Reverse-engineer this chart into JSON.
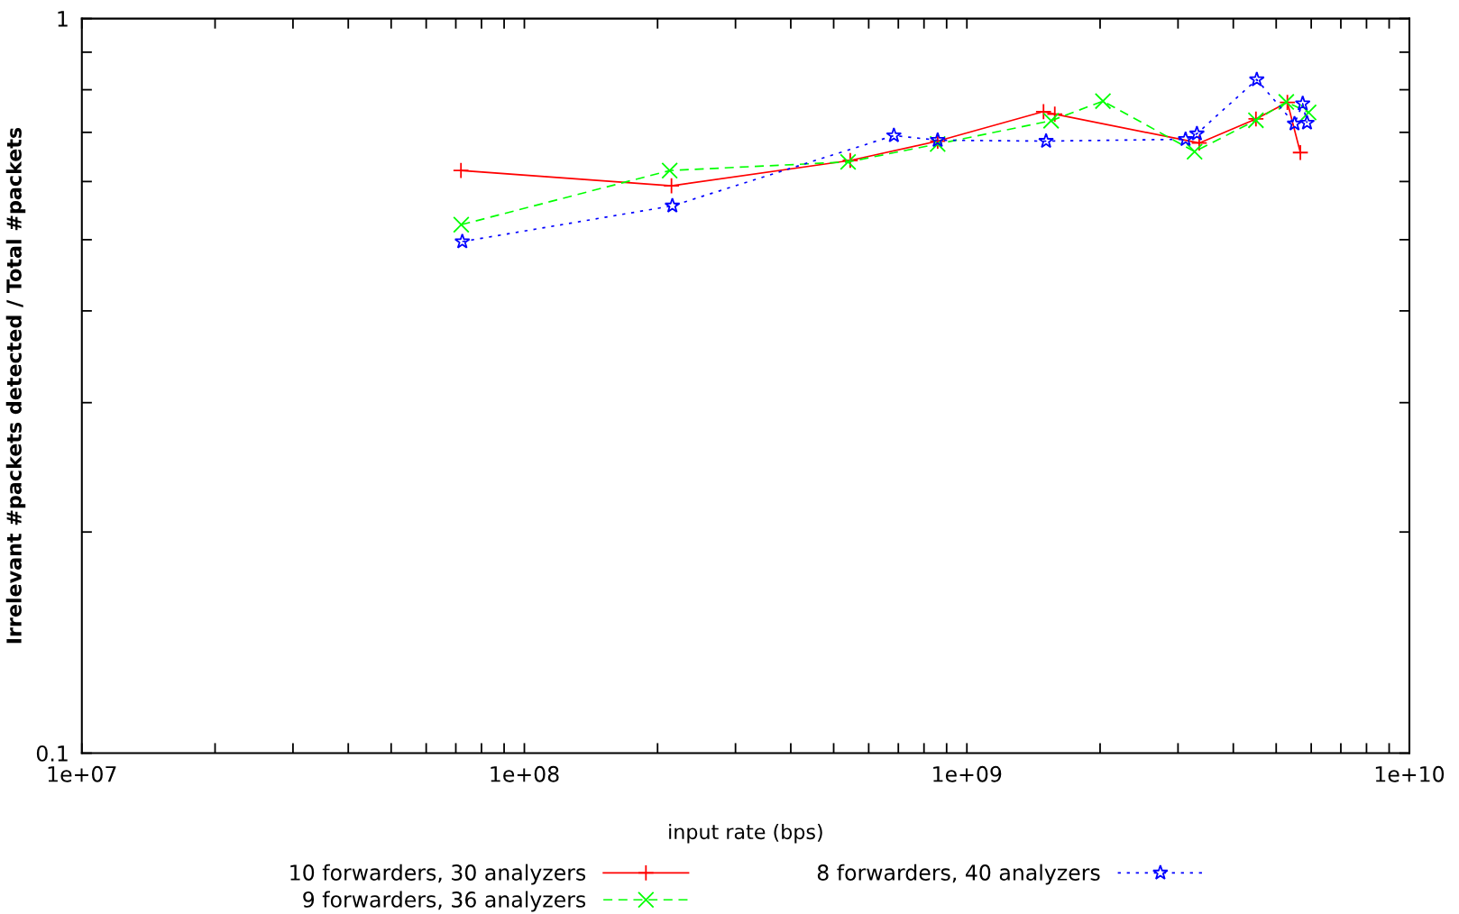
{
  "chart_data": {
    "type": "line",
    "xlabel": "input rate (bps)",
    "ylabel": "Irrelevant #packets detected / Total #packets",
    "log": "xy",
    "xlim": [
      10000000.0,
      10000000000.0
    ],
    "ylim": [
      0.1,
      1
    ],
    "xticks": [
      {
        "value": 10000000.0,
        "label": "1e+07"
      },
      {
        "value": 20000000.0,
        "label": null
      },
      {
        "value": 30000000.0,
        "label": null
      },
      {
        "value": 40000000.0,
        "label": null
      },
      {
        "value": 50000000.0,
        "label": null
      },
      {
        "value": 60000000.0,
        "label": null
      },
      {
        "value": 70000000.0,
        "label": null
      },
      {
        "value": 80000000.0,
        "label": null
      },
      {
        "value": 90000000.0,
        "label": null
      },
      {
        "value": 100000000.0,
        "label": "1e+08"
      },
      {
        "value": 200000000.0,
        "label": null
      },
      {
        "value": 300000000.0,
        "label": null
      },
      {
        "value": 400000000.0,
        "label": null
      },
      {
        "value": 500000000.0,
        "label": null
      },
      {
        "value": 600000000.0,
        "label": null
      },
      {
        "value": 700000000.0,
        "label": null
      },
      {
        "value": 800000000.0,
        "label": null
      },
      {
        "value": 900000000.0,
        "label": null
      },
      {
        "value": 1000000000.0,
        "label": "1e+09"
      },
      {
        "value": 2000000000.0,
        "label": null
      },
      {
        "value": 3000000000.0,
        "label": null
      },
      {
        "value": 4000000000.0,
        "label": null
      },
      {
        "value": 5000000000.0,
        "label": null
      },
      {
        "value": 6000000000.0,
        "label": null
      },
      {
        "value": 7000000000.0,
        "label": null
      },
      {
        "value": 8000000000.0,
        "label": null
      },
      {
        "value": 9000000000.0,
        "label": null
      },
      {
        "value": 10000000000.0,
        "label": "1e+10"
      }
    ],
    "yticks": [
      0.1,
      {
        "value": 0.2,
        "label": null
      },
      {
        "value": 0.3,
        "label": null
      },
      {
        "value": 0.4,
        "label": null
      },
      {
        "value": 0.5,
        "label": null
      },
      {
        "value": 0.6,
        "label": null
      },
      {
        "value": 0.7,
        "label": null
      },
      {
        "value": 0.8,
        "label": null
      },
      {
        "value": 0.9,
        "label": null
      },
      1
    ],
    "grid": false,
    "legend": "bottom",
    "series": [
      {
        "name": "10 forwarders, 30 analyzers",
        "color": "#ff0000",
        "marker": "plus",
        "line_style": "solid",
        "x": [
          71900000.0,
          215000000.0,
          545000000.0,
          859000000.0,
          1490000000.0,
          1580000000.0,
          3350000000.0,
          4500000000.0,
          5300000000.0,
          5670000000.0
        ],
        "values": [
          0.621,
          0.592,
          0.641,
          0.681,
          0.747,
          0.741,
          0.677,
          0.73,
          0.769,
          0.657
        ]
      },
      {
        "name": "9 forwarders, 36 analyzers",
        "color": "#00ff00",
        "marker": "cross",
        "line_style": "dashed",
        "x": [
          72000000.0,
          213000000.0,
          539000000.0,
          859000000.0,
          1550000000.0,
          2030000000.0,
          3270000000.0,
          4500000000.0,
          5270000000.0,
          5920000000.0
        ],
        "values": [
          0.524,
          0.621,
          0.638,
          0.675,
          0.726,
          0.772,
          0.659,
          0.727,
          0.77,
          0.745
        ]
      },
      {
        "name": "8 forwarders, 40 analyzers",
        "color": "#0000ff",
        "marker": "star",
        "line_style": "dotted",
        "x": [
          72400000.0,
          216000000.0,
          684000000.0,
          859000000.0,
          1510000000.0,
          3120000000.0,
          3310000000.0,
          4520000000.0,
          5500000000.0,
          5740000000.0,
          5870000000.0
        ],
        "values": [
          0.497,
          0.556,
          0.693,
          0.683,
          0.681,
          0.685,
          0.697,
          0.826,
          0.719,
          0.766,
          0.721
        ]
      }
    ]
  }
}
